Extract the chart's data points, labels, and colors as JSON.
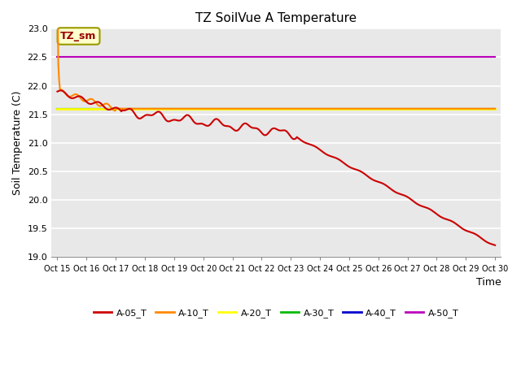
{
  "title": "TZ SoilVue A Temperature",
  "ylabel": "Soil Temperature (C)",
  "xlabel": "Time",
  "ylim": [
    19.0,
    23.0
  ],
  "yticks": [
    19.0,
    19.5,
    20.0,
    20.5,
    21.0,
    21.5,
    22.0,
    22.5,
    23.0
  ],
  "x_labels": [
    "Oct 15",
    "Oct 16",
    "Oct 17",
    "Oct 18",
    "Oct 19",
    "Oct 20",
    "Oct 21",
    "Oct 22",
    "Oct 23",
    "Oct 24",
    "Oct 25",
    "Oct 26",
    "Oct 27",
    "Oct 28",
    "Oct 29",
    "Oct 30"
  ],
  "num_points": 500,
  "background_color": "#e8e8e8",
  "grid_color": "#ffffff",
  "annotation_label": "TZ_sm",
  "series": [
    {
      "name": "A-05_T",
      "color": "#cc0000"
    },
    {
      "name": "A-10_T",
      "color": "#ff8800"
    },
    {
      "name": "A-20_T",
      "color": "#ffff00"
    },
    {
      "name": "A-30_T",
      "color": "#00bb00"
    },
    {
      "name": "A-40_T",
      "color": "#0000cc"
    },
    {
      "name": "A-50_T",
      "color": "#bb00bb"
    }
  ],
  "legend_colors": [
    "#cc0000",
    "#ff8800",
    "#ffff00",
    "#00bb00",
    "#0000cc",
    "#bb00bb"
  ],
  "legend_labels": [
    "A-05_T",
    "A-10_T",
    "A-20_T",
    "A-30_T",
    "A-40_T",
    "A-50_T"
  ]
}
